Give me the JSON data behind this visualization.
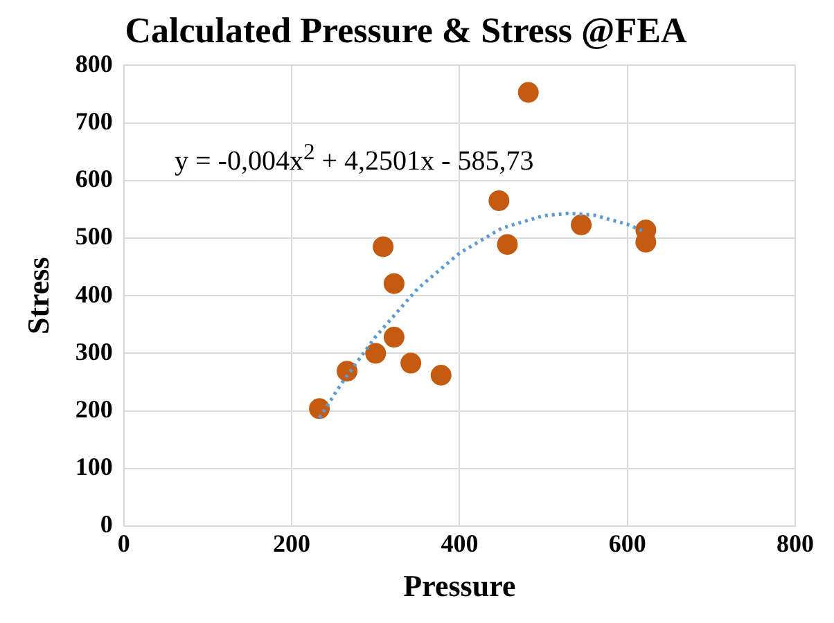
{
  "chart_data": {
    "type": "scatter",
    "title": "Calculated Pressure & Stress @FEA",
    "xlabel": "Pressure",
    "ylabel": "Stress",
    "xlim": [
      0,
      800
    ],
    "xticks": [
      0,
      200,
      400,
      600,
      800
    ],
    "ylim": [
      0,
      800
    ],
    "yticks": [
      0,
      100,
      200,
      300,
      400,
      500,
      600,
      700,
      800
    ],
    "grid": true,
    "legend": false,
    "marker": "circle",
    "annotations": [
      "y = -0,004x$^{2}$ + 4,2501x - 585,73"
    ],
    "series": [
      {
        "color": "#c55a11",
        "x": [
          233,
          266,
          300,
          309,
          322,
          322,
          342,
          378,
          447,
          457,
          482,
          545,
          622,
          622
        ],
        "values": [
          204,
          269,
          300,
          485,
          421,
          328,
          283,
          262,
          565,
          489,
          753,
          523,
          514,
          493
        ]
      },
      {
        "type": "line",
        "color": "#5b9bd5",
        "marker": "none",
        "line_style": "dotted",
        "x": [
          233,
          260,
          300,
          350,
          400,
          450,
          500,
          530,
          560,
          600,
          622
        ],
        "values": [
          188,
          249,
          329,
          412,
          474,
          517,
          539,
          543,
          540,
          524,
          510
        ]
      }
    ]
  }
}
